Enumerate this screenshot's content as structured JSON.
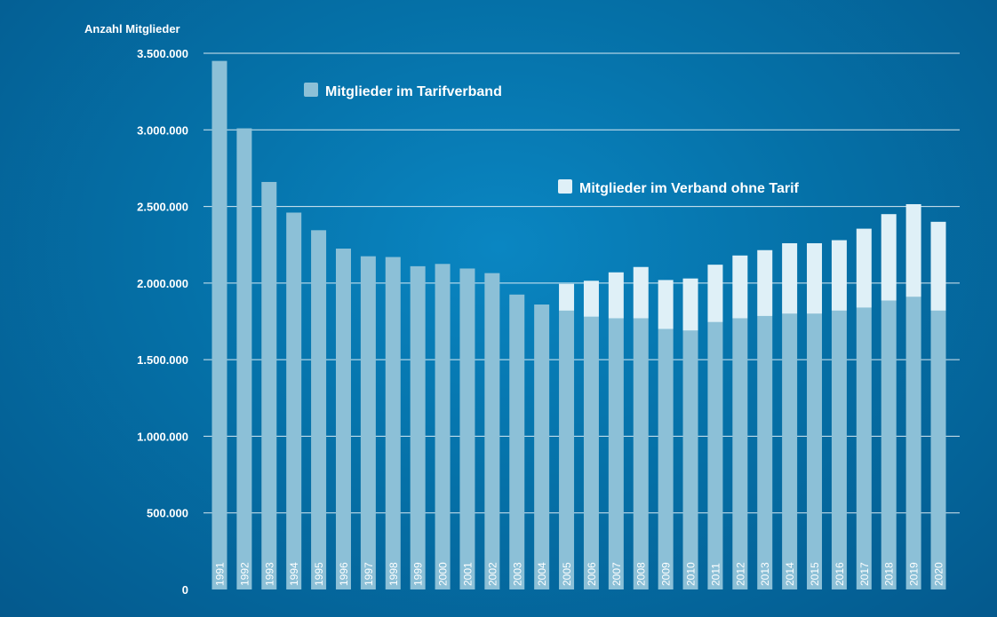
{
  "chart_data": {
    "type": "bar",
    "stacked": true,
    "ylabel": "Anzahl Mitglieder",
    "ylim": [
      0,
      3500000
    ],
    "yticks": [
      0,
      500000,
      1000000,
      1500000,
      2000000,
      2500000,
      3000000,
      3500000
    ],
    "ytick_labels": [
      "0",
      "500.000",
      "1.000.000",
      "1.500.000",
      "2.000.000",
      "2.500.000",
      "3.000.000",
      "3.500.000"
    ],
    "grid": true,
    "categories": [
      "1991",
      "1992",
      "1993",
      "1994",
      "1995",
      "1996",
      "1997",
      "1998",
      "1999",
      "2000",
      "2001",
      "2002",
      "2003",
      "2004",
      "2005",
      "2006",
      "2007",
      "2008",
      "2009",
      "2010",
      "2011",
      "2012",
      "2013",
      "2014",
      "2015",
      "2016",
      "2017",
      "2018",
      "2019",
      "2020"
    ],
    "series": [
      {
        "name": "Mitglieder im Tarifverband",
        "color": "#8cc0d7",
        "values": [
          3450000,
          3010000,
          2660000,
          2460000,
          2345000,
          2225000,
          2175000,
          2170000,
          2110000,
          2125000,
          2095000,
          2065000,
          1925000,
          1860000,
          1820000,
          1780000,
          1770000,
          1770000,
          1700000,
          1690000,
          1745000,
          1770000,
          1785000,
          1800000,
          1800000,
          1820000,
          1840000,
          1885000,
          1910000,
          1820000
        ]
      },
      {
        "name": "Mitglieder im Verband ohne Tarif",
        "color": "#dff0f7",
        "values": [
          0,
          0,
          0,
          0,
          0,
          0,
          0,
          0,
          0,
          0,
          0,
          0,
          0,
          0,
          175000,
          235000,
          300000,
          335000,
          320000,
          340000,
          375000,
          410000,
          430000,
          460000,
          460000,
          460000,
          515000,
          565000,
          605000,
          580000
        ]
      }
    ]
  }
}
